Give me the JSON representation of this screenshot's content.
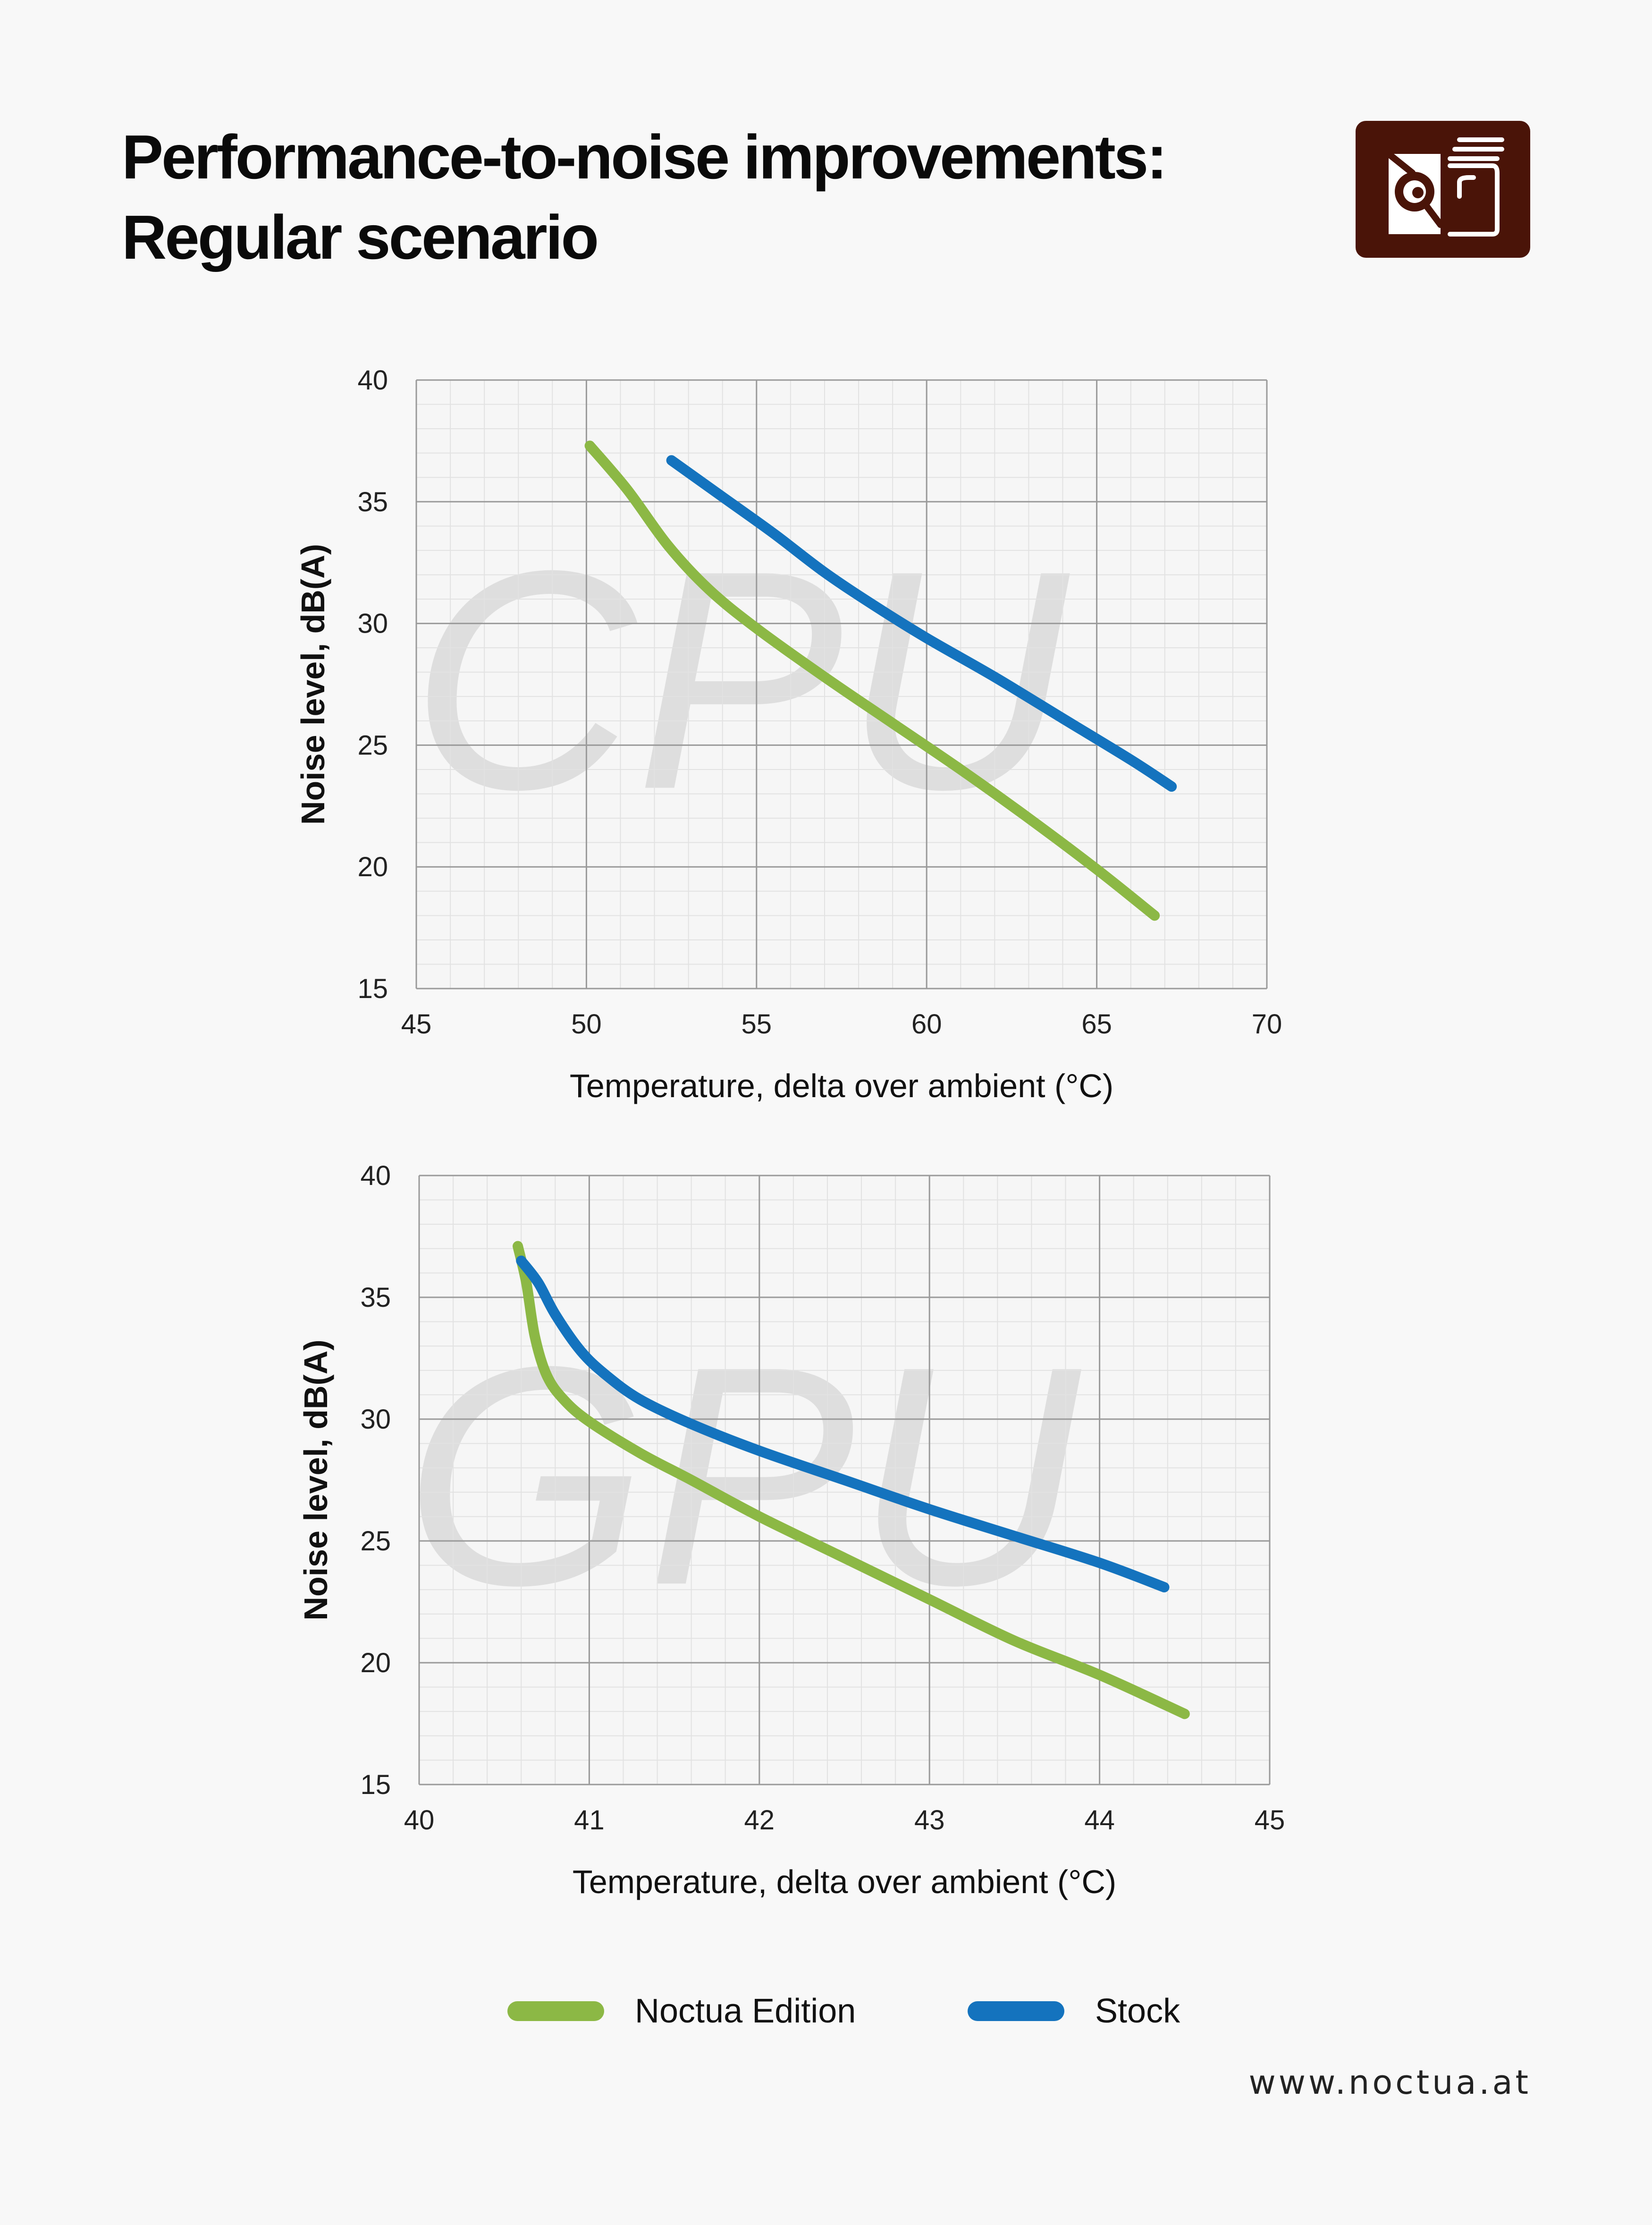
{
  "title": {
    "line1": "Performance-to-noise improvements:",
    "line2": "Regular scenario"
  },
  "logo": {
    "icon": "noctua-owl-logo-icon",
    "color": "#4a1408"
  },
  "colors": {
    "noctua": "#8cb845",
    "stock": "#1473be",
    "grid_major": "#9a9a9a",
    "grid_minor": "#e2e2e2",
    "watermark": "#dedede"
  },
  "chart_data": [
    {
      "type": "line",
      "watermark": "CPU",
      "xlabel": "Temperature, delta over ambient (°C)",
      "ylabel": "Noise level, dB(A)",
      "xlim": [
        45,
        70
      ],
      "ylim": [
        15,
        40
      ],
      "xticks": [
        45,
        50,
        55,
        60,
        65,
        70
      ],
      "yticks": [
        15,
        20,
        25,
        30,
        35,
        40
      ],
      "x_minor_step": 1,
      "y_minor_step": 1,
      "grid": true,
      "series": [
        {
          "name": "Noctua Edition",
          "color": "#8cb845",
          "points": [
            [
              50.1,
              37.3
            ],
            [
              51.2,
              35.5
            ],
            [
              52.4,
              33.2
            ],
            [
              53.6,
              31.4
            ],
            [
              55.0,
              29.8
            ],
            [
              57.0,
              27.8
            ],
            [
              59.0,
              25.9
            ],
            [
              61.0,
              24.0
            ],
            [
              63.0,
              22.0
            ],
            [
              65.0,
              19.9
            ],
            [
              66.7,
              18.0
            ]
          ]
        },
        {
          "name": "Stock",
          "color": "#1473be",
          "points": [
            [
              52.5,
              36.7
            ],
            [
              54.0,
              35.2
            ],
            [
              55.5,
              33.7
            ],
            [
              57.0,
              32.1
            ],
            [
              58.5,
              30.7
            ],
            [
              60.0,
              29.4
            ],
            [
              62.0,
              27.8
            ],
            [
              64.0,
              26.1
            ],
            [
              66.0,
              24.4
            ],
            [
              67.2,
              23.3
            ]
          ]
        }
      ]
    },
    {
      "type": "line",
      "watermark": "GPU",
      "xlabel": "Temperature, delta over ambient (°C)",
      "ylabel": "Noise level, dB(A)",
      "xlim": [
        40,
        45
      ],
      "ylim": [
        15,
        40
      ],
      "xticks": [
        40,
        41,
        42,
        43,
        44,
        45
      ],
      "yticks": [
        15,
        20,
        25,
        30,
        35,
        40
      ],
      "x_minor_step": 0.2,
      "y_minor_step": 1,
      "grid": true,
      "series": [
        {
          "name": "Noctua Edition",
          "color": "#8cb845",
          "points": [
            [
              40.58,
              37.1
            ],
            [
              40.63,
              35.6
            ],
            [
              40.68,
              33.4
            ],
            [
              40.75,
              31.8
            ],
            [
              40.85,
              30.8
            ],
            [
              41.0,
              29.9
            ],
            [
              41.3,
              28.6
            ],
            [
              41.6,
              27.5
            ],
            [
              42.0,
              26.0
            ],
            [
              42.5,
              24.3
            ],
            [
              43.0,
              22.6
            ],
            [
              43.5,
              20.9
            ],
            [
              44.0,
              19.5
            ],
            [
              44.5,
              17.9
            ]
          ]
        },
        {
          "name": "Stock",
          "color": "#1473be",
          "points": [
            [
              40.6,
              36.5
            ],
            [
              40.7,
              35.6
            ],
            [
              40.8,
              34.3
            ],
            [
              40.95,
              32.8
            ],
            [
              41.1,
              31.8
            ],
            [
              41.3,
              30.8
            ],
            [
              41.6,
              29.8
            ],
            [
              42.0,
              28.7
            ],
            [
              42.5,
              27.5
            ],
            [
              43.0,
              26.3
            ],
            [
              43.5,
              25.2
            ],
            [
              44.0,
              24.1
            ],
            [
              44.38,
              23.1
            ]
          ]
        }
      ]
    }
  ],
  "legend": {
    "placement": "bottom-center",
    "items": [
      {
        "label": "Noctua Edition",
        "color": "#8cb845"
      },
      {
        "label": "Stock",
        "color": "#1473be"
      }
    ]
  },
  "footer": {
    "website": "www.noctua.at"
  }
}
